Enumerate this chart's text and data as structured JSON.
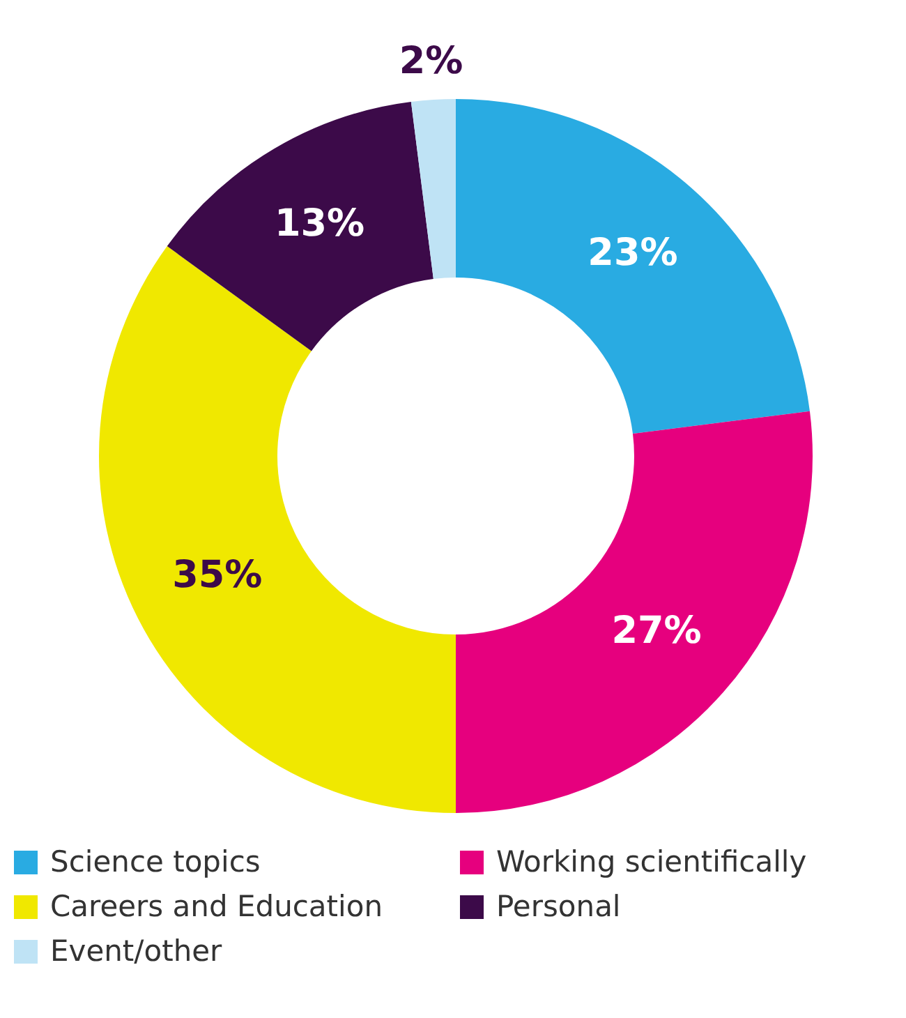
{
  "chart_data": {
    "type": "donut",
    "categories": [
      "Science topics",
      "Working scientifically",
      "Careers and Education",
      "Personal",
      "Event/other"
    ],
    "values": [
      23,
      27,
      35,
      13,
      2
    ],
    "colors": [
      "#29abe2",
      "#e6007e",
      "#f0e800",
      "#3c0a49",
      "#bfe3f5"
    ],
    "value_labels": [
      "23%",
      "27%",
      "35%",
      "13%",
      "2%"
    ],
    "legend": "bottom"
  }
}
